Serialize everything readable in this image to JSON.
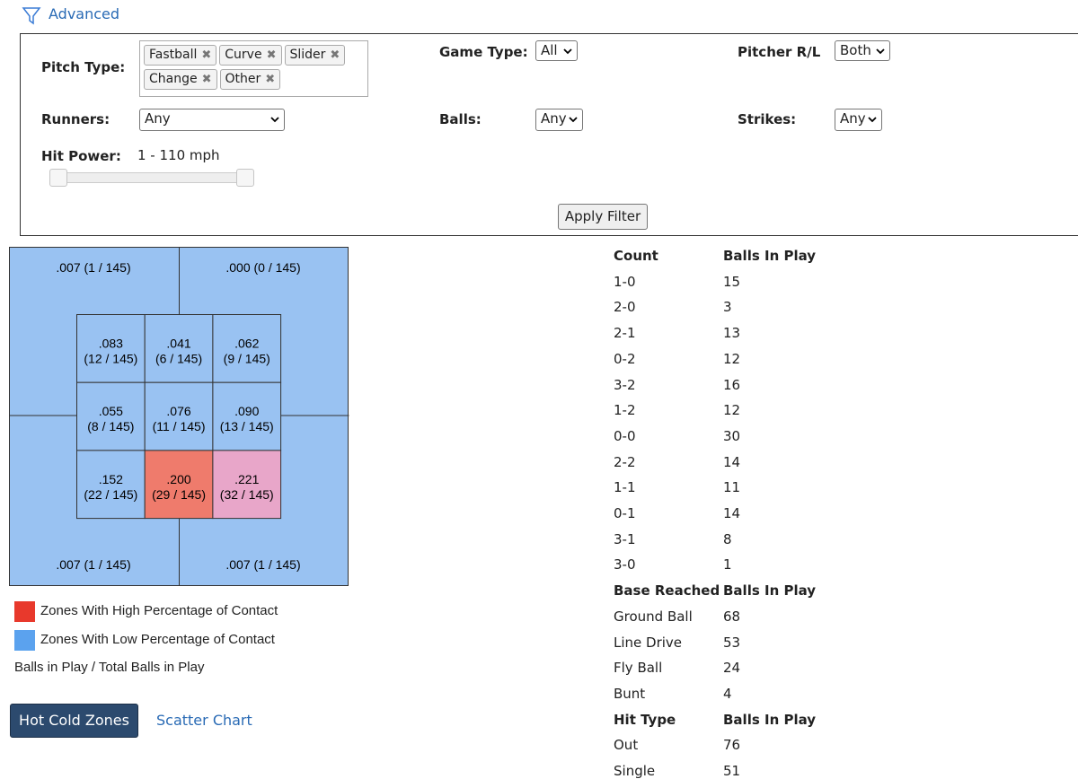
{
  "filter": {
    "advanced": "Advanced",
    "pitch_type_label": "Pitch Type:",
    "pitch_types": [
      "Fastball",
      "Curve",
      "Slider",
      "Change",
      "Other"
    ],
    "game_type_label": "Game Type:",
    "game_type": "All",
    "pitcher_label": "Pitcher R/L",
    "pitcher": "Both",
    "runners_label": "Runners:",
    "runners": "Any",
    "balls_label": "Balls:",
    "balls": "Any",
    "strikes_label": "Strikes:",
    "strikes": "Any",
    "hit_power_label": "Hit Power:",
    "hit_power": "1 - 110 mph",
    "apply": "Apply Filter"
  },
  "zones": {
    "outer_color": "#99c2f2",
    "outer": [
      ".007 (1 / 145)",
      ".000 (0 / 145)",
      ".007 (1 / 145)",
      ".007 (1 / 145)"
    ],
    "inner": [
      [
        {
          "avg": ".083",
          "count": "(12 / 145)",
          "color": "#99c2f2"
        },
        {
          "avg": ".041",
          "count": "(6 / 145)",
          "color": "#99c2f2"
        },
        {
          "avg": ".062",
          "count": "(9 / 145)",
          "color": "#99c2f2"
        }
      ],
      [
        {
          "avg": ".055",
          "count": "(8 / 145)",
          "color": "#99c2f2"
        },
        {
          "avg": ".076",
          "count": "(11 / 145)",
          "color": "#99c2f2"
        },
        {
          "avg": ".090",
          "count": "(13 / 145)",
          "color": "#99c2f2"
        }
      ],
      [
        {
          "avg": ".152",
          "count": "(22 / 145)",
          "color": "#99c2f2"
        },
        {
          "avg": ".200",
          "count": "(29 / 145)",
          "color": "#ef7b6c"
        },
        {
          "avg": ".221",
          "count": "(32 / 145)",
          "color": "#e8a6c9"
        }
      ]
    ]
  },
  "legend": [
    {
      "label": "Zones With High Percentage of Contact",
      "color": "#e8392c"
    },
    {
      "label": "Zones With Low Percentage of Contact",
      "color": "#5ba2ee"
    }
  ],
  "legend_note": "Balls in Play / Total Balls in Play",
  "tabs": [
    "Hot Cold Zones",
    "Scatter Chart"
  ],
  "tables": [
    {
      "header": [
        "Count",
        "Balls In Play"
      ],
      "rows": [
        [
          "1-0",
          "15"
        ],
        [
          "2-0",
          "3"
        ],
        [
          "2-1",
          "13"
        ],
        [
          "0-2",
          "12"
        ],
        [
          "3-2",
          "16"
        ],
        [
          "1-2",
          "12"
        ],
        [
          "0-0",
          "30"
        ],
        [
          "2-2",
          "14"
        ],
        [
          "1-1",
          "11"
        ],
        [
          "0-1",
          "14"
        ],
        [
          "3-1",
          "8"
        ],
        [
          "3-0",
          "1"
        ]
      ]
    },
    {
      "header": [
        "Base Reached",
        "Balls In Play"
      ],
      "rows": [
        [
          "Ground Ball",
          "68"
        ],
        [
          "Line Drive",
          "53"
        ],
        [
          "Fly Ball",
          "24"
        ],
        [
          "Bunt",
          "4"
        ]
      ]
    },
    {
      "header": [
        "Hit Type",
        "Balls In Play"
      ],
      "rows": [
        [
          "Out",
          "76"
        ],
        [
          "Single",
          "51"
        ]
      ]
    }
  ]
}
